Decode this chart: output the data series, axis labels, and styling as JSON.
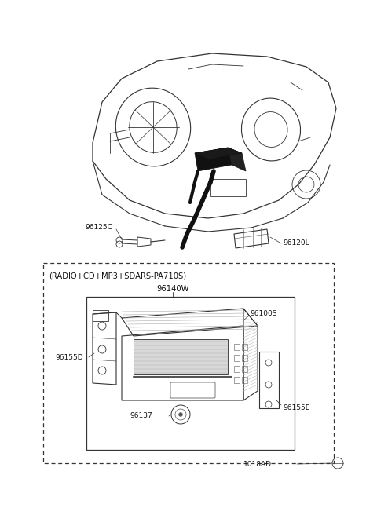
{
  "bg_color": "#ffffff",
  "line_color": "#333333",
  "dark_color": "#111111",
  "radio_label": "(RADIO+CD+MP3+SDARS-PA710S)",
  "part_140w": "96140W",
  "part_100s": "96100S",
  "part_155d": "96155D",
  "part_137": "96137",
  "part_155e": "96155E",
  "part_1018ad": "1018AD",
  "part_125c": "96125C",
  "part_120l": "96120L",
  "fig_width": 4.8,
  "fig_height": 6.56,
  "dpi": 100
}
